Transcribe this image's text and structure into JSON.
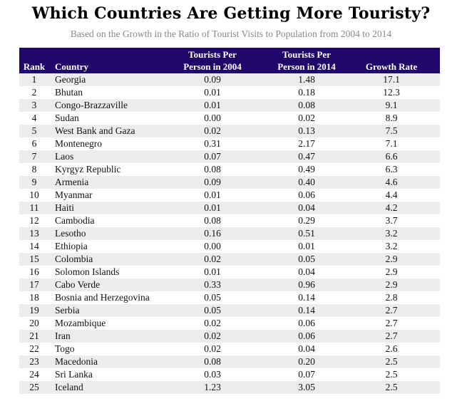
{
  "chart_data": {
    "type": "table",
    "title": "Which Countries Are Getting More Touristy?",
    "subtitle": "Based on the Growth in the Ratio of Tourist Visits to Population from 2004 to 2014",
    "columns": {
      "rank": "Rank",
      "country": "Country",
      "tpp2004_line1": "Tourists Per",
      "tpp2004_line2": "Person in 2004",
      "tpp2014_line1": "Tourists Per",
      "tpp2014_line2": "Person in 2014",
      "growth": "Growth Rate"
    },
    "rows": [
      {
        "rank": "1",
        "country": "Georgia",
        "tpp2004": "0.09",
        "tpp2014": "1.48",
        "growth": "17.1"
      },
      {
        "rank": "2",
        "country": "Bhutan",
        "tpp2004": "0.01",
        "tpp2014": "0.18",
        "growth": "12.3"
      },
      {
        "rank": "3",
        "country": "Congo-Brazzaville",
        "tpp2004": "0.01",
        "tpp2014": "0.08",
        "growth": "9.1"
      },
      {
        "rank": "4",
        "country": "Sudan",
        "tpp2004": "0.00",
        "tpp2014": "0.02",
        "growth": "8.9"
      },
      {
        "rank": "5",
        "country": "West Bank and Gaza",
        "tpp2004": "0.02",
        "tpp2014": "0.13",
        "growth": "7.5"
      },
      {
        "rank": "6",
        "country": "Montenegro",
        "tpp2004": "0.31",
        "tpp2014": "2.17",
        "growth": "7.1"
      },
      {
        "rank": "7",
        "country": "Laos",
        "tpp2004": "0.07",
        "tpp2014": "0.47",
        "growth": "6.6"
      },
      {
        "rank": "8",
        "country": "Kyrgyz Republic",
        "tpp2004": "0.08",
        "tpp2014": "0.49",
        "growth": "6.3"
      },
      {
        "rank": "9",
        "country": "Armenia",
        "tpp2004": "0.09",
        "tpp2014": "0.40",
        "growth": "4.6"
      },
      {
        "rank": "10",
        "country": "Myanmar",
        "tpp2004": "0.01",
        "tpp2014": "0.06",
        "growth": "4.4"
      },
      {
        "rank": "11",
        "country": "Haiti",
        "tpp2004": "0.01",
        "tpp2014": "0.04",
        "growth": "4.2"
      },
      {
        "rank": "12",
        "country": "Cambodia",
        "tpp2004": "0.08",
        "tpp2014": "0.29",
        "growth": "3.7"
      },
      {
        "rank": "13",
        "country": "Lesotho",
        "tpp2004": "0.16",
        "tpp2014": "0.51",
        "growth": "3.2"
      },
      {
        "rank": "14",
        "country": "Ethiopia",
        "tpp2004": "0.00",
        "tpp2014": "0.01",
        "growth": "3.2"
      },
      {
        "rank": "15",
        "country": "Colombia",
        "tpp2004": "0.02",
        "tpp2014": "0.05",
        "growth": "2.9"
      },
      {
        "rank": "16",
        "country": "Solomon Islands",
        "tpp2004": "0.01",
        "tpp2014": "0.04",
        "growth": "2.9"
      },
      {
        "rank": "17",
        "country": "Cabo Verde",
        "tpp2004": "0.33",
        "tpp2014": "0.96",
        "growth": "2.9"
      },
      {
        "rank": "18",
        "country": "Bosnia and Herzegovina",
        "tpp2004": "0.05",
        "tpp2014": "0.14",
        "growth": "2.8"
      },
      {
        "rank": "19",
        "country": "Serbia",
        "tpp2004": "0.05",
        "tpp2014": "0.14",
        "growth": "2.7"
      },
      {
        "rank": "20",
        "country": "Mozambique",
        "tpp2004": "0.02",
        "tpp2014": "0.06",
        "growth": "2.7"
      },
      {
        "rank": "21",
        "country": "Iran",
        "tpp2004": "0.02",
        "tpp2014": "0.06",
        "growth": "2.7"
      },
      {
        "rank": "22",
        "country": "Togo",
        "tpp2004": "0.02",
        "tpp2014": "0.04",
        "growth": "2.6"
      },
      {
        "rank": "23",
        "country": "Macedonia",
        "tpp2004": "0.08",
        "tpp2014": "0.20",
        "growth": "2.5"
      },
      {
        "rank": "24",
        "country": "Sri Lanka",
        "tpp2004": "0.03",
        "tpp2014": "0.07",
        "growth": "2.5"
      },
      {
        "rank": "25",
        "country": "Iceland",
        "tpp2004": "1.23",
        "tpp2014": "3.05",
        "growth": "2.5"
      }
    ],
    "colors": {
      "header_bg": "#22076a",
      "header_text": "#ffffff",
      "stripe": "#ececec",
      "subtitle": "#888888"
    }
  }
}
